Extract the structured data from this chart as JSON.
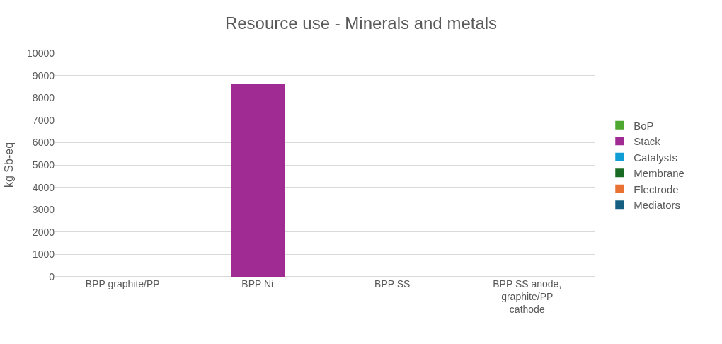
{
  "chart_data": {
    "type": "bar",
    "stacked": true,
    "title": "Resource use - Minerals and metals",
    "ylabel": "kg Sb-eq",
    "categories": [
      "BPP graphite/PP",
      "BPP Ni",
      "BPP SS",
      "BPP SS anode, graphite/PP cathode"
    ],
    "series": [
      {
        "name": "BoP",
        "color": "#4ea72e",
        "values": [
          0,
          0,
          0,
          0
        ]
      },
      {
        "name": "Stack",
        "color": "#a02b93",
        "values": [
          0,
          8630,
          0,
          0
        ]
      },
      {
        "name": "Catalysts",
        "color": "#0f9ed5",
        "values": [
          0,
          0,
          0,
          0
        ]
      },
      {
        "name": "Membrane",
        "color": "#196b24",
        "values": [
          0,
          0,
          0,
          0
        ]
      },
      {
        "name": "Electrode",
        "color": "#e97132",
        "values": [
          0,
          0,
          0,
          0
        ]
      },
      {
        "name": "Mediators",
        "color": "#156082",
        "values": [
          0,
          0,
          0,
          0
        ]
      }
    ],
    "ylim": [
      0,
      10000
    ],
    "yticks": [
      0,
      1000,
      2000,
      3000,
      4000,
      5000,
      6000,
      7000,
      8000,
      9000,
      10000
    ],
    "grid": "y",
    "legend": "right"
  }
}
